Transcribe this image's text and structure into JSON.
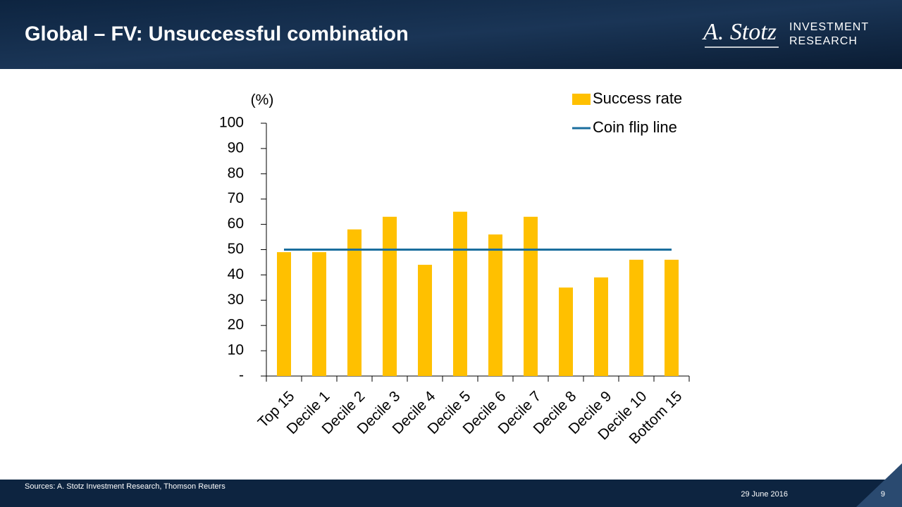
{
  "header": {
    "title": "Global – FV: Unsuccessful combination",
    "logo": {
      "name": "A. Stotz",
      "line1": "INVESTMENT",
      "line2": "RESEARCH"
    }
  },
  "footer": {
    "sources": "Sources: A. Stotz Investment Research, Thomson Reuters",
    "date": "29 June 2016",
    "page": "9"
  },
  "chart_data": {
    "type": "bar",
    "y_label": "(%)",
    "categories": [
      "Top 15",
      "Decile 1",
      "Decile 2",
      "Decile 3",
      "Decile 4",
      "Decile 5",
      "Decile 6",
      "Decile 7",
      "Decile 8",
      "Decile 9",
      "Decile 10",
      "Bottom 15"
    ],
    "series": [
      {
        "name": "Success rate",
        "type": "bar",
        "color": "#FFC000",
        "values": [
          49,
          49,
          58,
          63,
          44,
          65,
          56,
          63,
          35,
          39,
          46,
          46
        ]
      },
      {
        "name": "Coin flip line",
        "type": "line",
        "color": "#1A6E9E",
        "values": [
          50,
          50,
          50,
          50,
          50,
          50,
          50,
          50,
          50,
          50,
          50,
          50
        ]
      }
    ],
    "ylim": [
      0,
      100
    ],
    "yticks": [
      {
        "value": 0,
        "label": "-"
      },
      10,
      20,
      30,
      40,
      50,
      60,
      70,
      80,
      90,
      100
    ],
    "grid": false,
    "legend": "top-right"
  }
}
